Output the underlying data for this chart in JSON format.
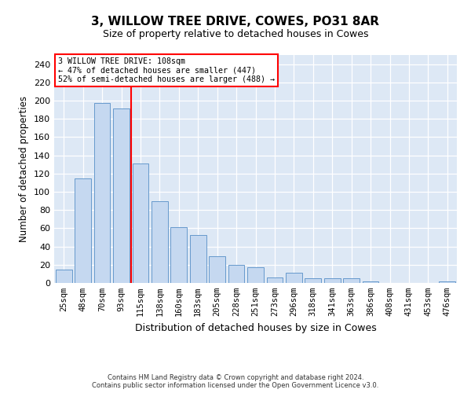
{
  "title": "3, WILLOW TREE DRIVE, COWES, PO31 8AR",
  "subtitle": "Size of property relative to detached houses in Cowes",
  "xlabel": "Distribution of detached houses by size in Cowes",
  "ylabel": "Number of detached properties",
  "categories": [
    "25sqm",
    "48sqm",
    "70sqm",
    "93sqm",
    "115sqm",
    "138sqm",
    "160sqm",
    "183sqm",
    "205sqm",
    "228sqm",
    "251sqm",
    "273sqm",
    "296sqm",
    "318sqm",
    "341sqm",
    "363sqm",
    "386sqm",
    "408sqm",
    "431sqm",
    "453sqm",
    "476sqm"
  ],
  "values": [
    15,
    115,
    197,
    191,
    131,
    90,
    61,
    53,
    29,
    20,
    17,
    6,
    11,
    5,
    5,
    5,
    2,
    0,
    0,
    0,
    2
  ],
  "bar_color": "#c5d8f0",
  "bar_edge_color": "#6699cc",
  "vline_color": "red",
  "vline_pos": 3.5,
  "annotation_text": "3 WILLOW TREE DRIVE: 108sqm\n← 47% of detached houses are smaller (447)\n52% of semi-detached houses are larger (488) →",
  "annotation_box_edgecolor": "red",
  "footer_text": "Contains HM Land Registry data © Crown copyright and database right 2024.\nContains public sector information licensed under the Open Government Licence v3.0.",
  "ylim": [
    0,
    250
  ],
  "yticks": [
    0,
    20,
    40,
    60,
    80,
    100,
    120,
    140,
    160,
    180,
    200,
    220,
    240
  ],
  "background_color": "#dde8f5",
  "title_fontsize": 11,
  "subtitle_fontsize": 9,
  "axis_label_fontsize": 8.5,
  "tick_fontsize": 7.5
}
